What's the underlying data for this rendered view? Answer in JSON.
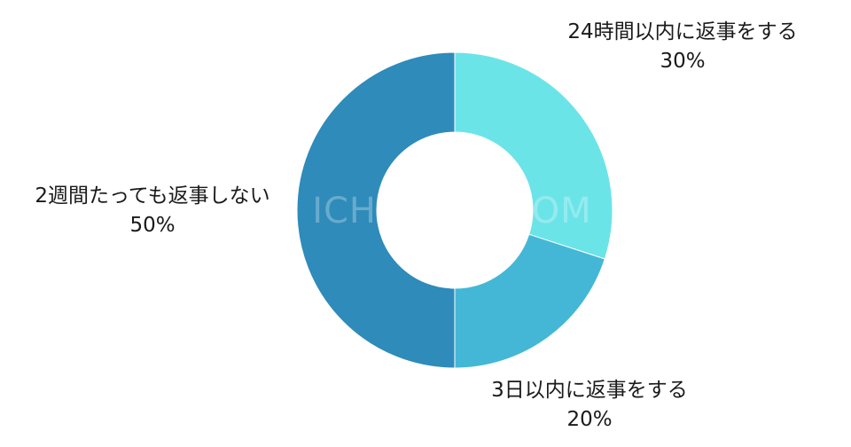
{
  "chart_data": {
    "type": "pie",
    "variant": "donut",
    "categories": [
      "24時間以内に返事をする",
      "3日以内に返事をする",
      "2週間たっても返事しない"
    ],
    "values": [
      30,
      20,
      50
    ],
    "value_labels": [
      "30%",
      "20%",
      "50%"
    ],
    "colors": [
      "#6be4e8",
      "#44b7d6",
      "#2e8bba"
    ],
    "start": "12 o'clock",
    "direction": "clockwise",
    "legend": "none"
  },
  "watermark": "ICHIKONN.COM"
}
